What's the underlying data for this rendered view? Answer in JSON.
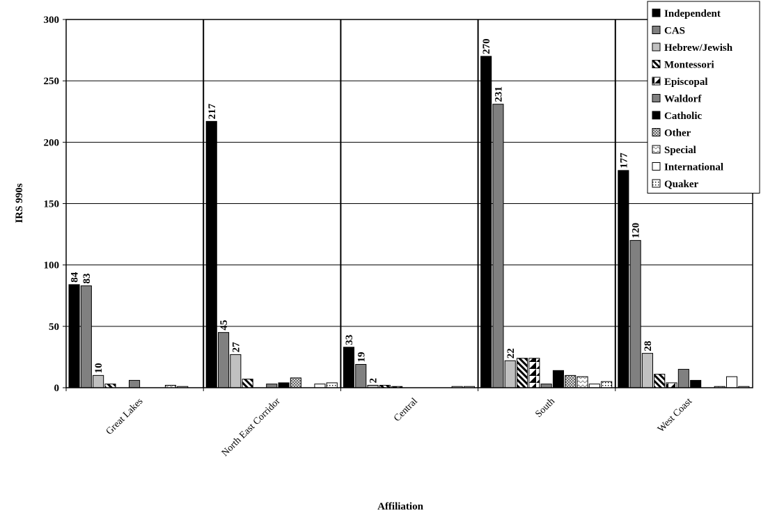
{
  "chart_data": {
    "type": "bar",
    "xlabel": "Affiliation",
    "ylabel": "IRS 990s",
    "ylim": [
      0,
      300
    ],
    "yticks": [
      0,
      50,
      100,
      150,
      200,
      250,
      300
    ],
    "grid": true,
    "legend_position": "top-right",
    "categories": [
      "Great Lakes",
      "North East Corridor",
      "Central",
      "South",
      "West Coast"
    ],
    "series": [
      {
        "name": "Independent",
        "values": [
          84,
          217,
          33,
          270,
          177
        ],
        "color": "#000000",
        "pattern": "solid",
        "labeled": true
      },
      {
        "name": "CAS",
        "values": [
          83,
          45,
          19,
          231,
          120
        ],
        "color": "#808080",
        "pattern": "solid",
        "labeled": true
      },
      {
        "name": "Hebrew/Jewish",
        "values": [
          10,
          27,
          2,
          22,
          28
        ],
        "color": "#c0c0c0",
        "pattern": "solid",
        "labeled": true
      },
      {
        "name": "Montessori",
        "values": [
          3,
          7,
          2,
          24,
          11
        ],
        "color": "#000000",
        "pattern": "diagonal",
        "labeled": false
      },
      {
        "name": "Episcopal",
        "values": [
          0,
          0,
          1,
          24,
          4
        ],
        "color": "#ffffff",
        "pattern": "corner",
        "labeled": false
      },
      {
        "name": "Waldorf",
        "values": [
          6,
          3,
          0,
          3,
          15
        ],
        "color": "#808080",
        "pattern": "solid",
        "labeled": false
      },
      {
        "name": "Catholic",
        "values": [
          0,
          4,
          0,
          14,
          6
        ],
        "color": "#000000",
        "pattern": "solid",
        "labeled": false
      },
      {
        "name": "Other",
        "values": [
          0,
          8,
          0,
          10,
          0
        ],
        "color": "#999999",
        "pattern": "checker",
        "labeled": false
      },
      {
        "name": "Special",
        "values": [
          2,
          0,
          0,
          9,
          1
        ],
        "color": "#dddddd",
        "pattern": "zigzag",
        "labeled": false
      },
      {
        "name": "International",
        "values": [
          1,
          3,
          1,
          3,
          9
        ],
        "color": "#ffffff",
        "pattern": "solid",
        "labeled": false
      },
      {
        "name": "Quaker",
        "values": [
          0,
          4,
          1,
          5,
          1
        ],
        "color": "#ffffff",
        "pattern": "dots",
        "labeled": false
      }
    ]
  }
}
